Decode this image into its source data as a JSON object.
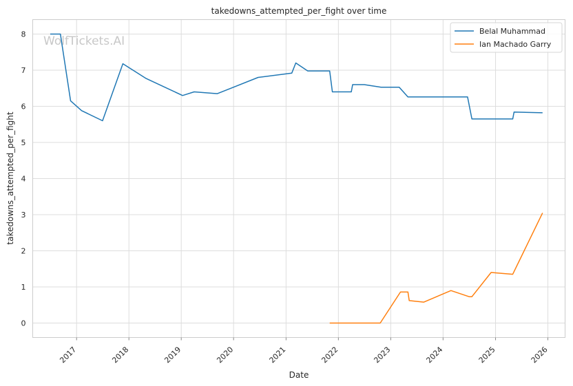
{
  "chart_data": {
    "type": "line",
    "title": "takedowns_attempted_per_fight over time",
    "xlabel": "Date",
    "ylabel": "takedowns_attempted_per_fight",
    "watermark": "WolfTickets.AI",
    "xlim": [
      "2016-03-01",
      "2026-05-01"
    ],
    "ylim": [
      -0.4,
      8.4
    ],
    "x_ticks": [
      "2017",
      "2018",
      "2019",
      "2020",
      "2021",
      "2022",
      "2023",
      "2024",
      "2025",
      "2026"
    ],
    "y_ticks": [
      0,
      1,
      2,
      3,
      4,
      5,
      6,
      7,
      8
    ],
    "grid": true,
    "legend_position": "top-right",
    "series": [
      {
        "name": "Belal Muhammad",
        "color": "#1f77b4",
        "points": [
          [
            "2016-07-01",
            8.0
          ],
          [
            "2016-09-10",
            8.0
          ],
          [
            "2016-11-20",
            6.15
          ],
          [
            "2017-02-05",
            5.88
          ],
          [
            "2017-07-01",
            5.6
          ],
          [
            "2017-11-20",
            7.18
          ],
          [
            "2018-05-01",
            6.77
          ],
          [
            "2019-01-10",
            6.3
          ],
          [
            "2019-04-01",
            6.4
          ],
          [
            "2019-09-10",
            6.35
          ],
          [
            "2020-06-20",
            6.8
          ],
          [
            "2021-02-10",
            6.92
          ],
          [
            "2021-03-10",
            7.2
          ],
          [
            "2021-06-01",
            6.98
          ],
          [
            "2021-11-01",
            6.98
          ],
          [
            "2021-11-20",
            6.4
          ],
          [
            "2022-04-01",
            6.4
          ],
          [
            "2022-04-10",
            6.6
          ],
          [
            "2022-07-01",
            6.6
          ],
          [
            "2022-10-25",
            6.53
          ],
          [
            "2023-03-01",
            6.53
          ],
          [
            "2023-05-01",
            6.26
          ],
          [
            "2024-06-20",
            6.26
          ],
          [
            "2024-07-20",
            5.65
          ],
          [
            "2025-05-01",
            5.65
          ],
          [
            "2025-05-10",
            5.84
          ],
          [
            "2025-11-25",
            5.82
          ]
        ]
      },
      {
        "name": "Ian Machado Garry",
        "color": "#ff7f0e",
        "points": [
          [
            "2021-11-01",
            0.0
          ],
          [
            "2022-10-20",
            0.0
          ],
          [
            "2023-03-10",
            0.86
          ],
          [
            "2023-05-01",
            0.86
          ],
          [
            "2023-05-10",
            0.62
          ],
          [
            "2023-08-20",
            0.58
          ],
          [
            "2024-02-25",
            0.9
          ],
          [
            "2024-07-01",
            0.73
          ],
          [
            "2024-07-20",
            0.73
          ],
          [
            "2024-12-01",
            1.4
          ],
          [
            "2025-05-01",
            1.35
          ],
          [
            "2025-11-25",
            3.05
          ]
        ]
      }
    ]
  }
}
